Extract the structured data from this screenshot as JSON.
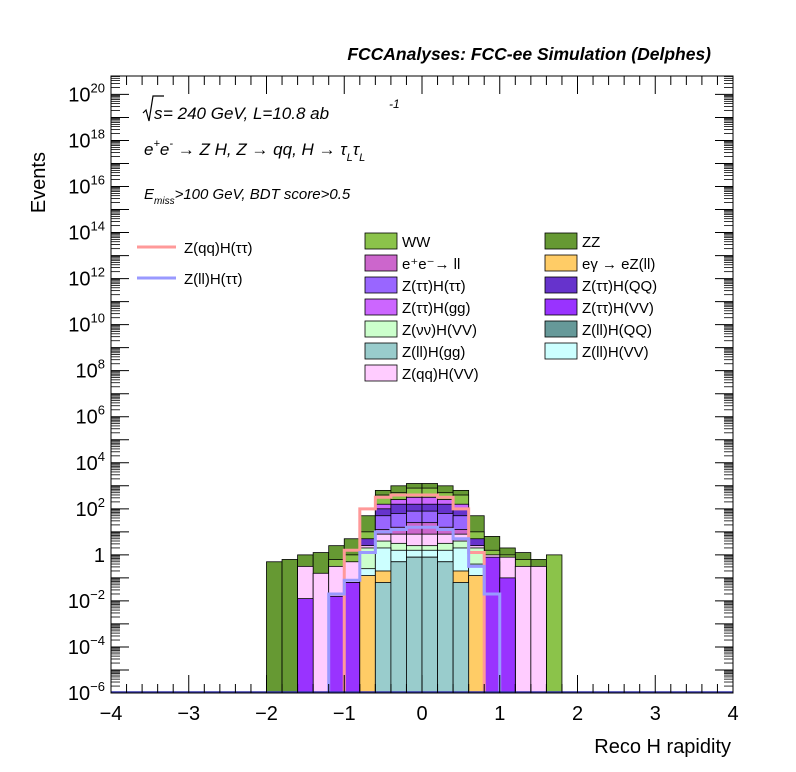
{
  "header": {
    "title": "FCCAnalyses: FCC-ee Simulation (Delphes)",
    "line1_pre": "s",
    "line1_main": " = 240 GeV, L=10.8 ab",
    "line1_exp": "-1",
    "line2_a": "e",
    "line2_a_sup": "+",
    "line2_b": "e",
    "line2_b_sup": "-",
    "line2_rest": " → Z H, Z  → qq, H  → τ",
    "line2_sub1": "L",
    "line2_tau2": "τ",
    "line2_sub2": "L",
    "cut_e": "E",
    "cut_sub": "miss",
    "cut_rest": ">100 GeV, BDT score>0.5"
  },
  "axes": {
    "xlabel": "Reco H rapidity",
    "ylabel": "Events",
    "xlim": [
      -4,
      4
    ],
    "ylim_log10": [
      -6,
      20.8
    ],
    "xticks": [
      "−4",
      "−3",
      "−2",
      "−1",
      "0",
      "1",
      "2",
      "3",
      "4"
    ],
    "xtick_values": [
      -4,
      -3,
      -2,
      -1,
      0,
      1,
      2,
      3,
      4
    ],
    "yticks": [
      {
        "exp": -6,
        "base": "10",
        "sup": "−6"
      },
      {
        "exp": -4,
        "base": "10",
        "sup": "−4"
      },
      {
        "exp": -2,
        "base": "10",
        "sup": "−2"
      },
      {
        "exp": 0,
        "base": "1",
        "sup": ""
      },
      {
        "exp": 2,
        "base": "10",
        "sup": "2"
      },
      {
        "exp": 4,
        "base": "10",
        "sup": "4"
      },
      {
        "exp": 6,
        "base": "10",
        "sup": "6"
      },
      {
        "exp": 8,
        "base": "10",
        "sup": "8"
      },
      {
        "exp": 10,
        "base": "10",
        "sup": "10"
      },
      {
        "exp": 12,
        "base": "10",
        "sup": "12"
      },
      {
        "exp": 14,
        "base": "10",
        "sup": "14"
      },
      {
        "exp": 16,
        "base": "10",
        "sup": "16"
      },
      {
        "exp": 18,
        "base": "10",
        "sup": "18"
      },
      {
        "exp": 20,
        "base": "10",
        "sup": "20"
      }
    ],
    "scale": "log"
  },
  "legend_signals": [
    {
      "label": "Z(qq)H(ττ)",
      "color": "#ff9999"
    },
    {
      "label": "Z(ll)H(ττ)",
      "color": "#9999ff"
    }
  ],
  "legend_backgrounds": [
    {
      "label": "WW",
      "color": "#8bc34a"
    },
    {
      "label": "ZZ",
      "color": "#669933"
    },
    {
      "label": "e⁺e⁻→ ll",
      "color": "#cc66cc"
    },
    {
      "label": "eγ  → eZ(ll)",
      "color": "#ffcc66"
    },
    {
      "label": "Z(ττ)H(ττ)",
      "color": "#9966ff"
    },
    {
      "label": "Z(ττ)H(QQ)",
      "color": "#6633cc"
    },
    {
      "label": "Z(ττ)H(gg)",
      "color": "#cc66ff"
    },
    {
      "label": "Z(ττ)H(VV)",
      "color": "#9933ff"
    },
    {
      "label": "Z(νν)H(VV)",
      "color": "#ccffcc"
    },
    {
      "label": "Z(ll)H(QQ)",
      "color": "#669999"
    },
    {
      "label": "Z(ll)H(gg)",
      "color": "#99cccc"
    },
    {
      "label": "Z(ll)H(VV)",
      "color": "#ccffff"
    },
    {
      "label": "Z(qq)H(VV)",
      "color": "#ffccff"
    }
  ],
  "chart_data": {
    "type": "area",
    "bin_edges": [
      -2.0,
      -1.8,
      -1.6,
      -1.4,
      -1.2,
      -1.0,
      -0.8,
      -0.6,
      -0.4,
      -0.2,
      0.0,
      0.2,
      0.4,
      0.6,
      0.8,
      1.0,
      1.2,
      1.4,
      1.6,
      1.8,
      2.0
    ],
    "stack_log10_tops": [
      {
        "name": "Z(ll)H(gg)",
        "color": "#99cccc",
        "tops": [
          null,
          null,
          null,
          null,
          null,
          null,
          null,
          -1.2,
          -0.3,
          -0.1,
          -0.1,
          -0.3,
          -1.2,
          null,
          null,
          null,
          null,
          null,
          null,
          null
        ]
      },
      {
        "name": "eγ  → eZ(ll)",
        "color": "#ffcc66",
        "tops": [
          null,
          null,
          null,
          null,
          null,
          null,
          -0.9,
          -0.7,
          -0.3,
          -0.1,
          -0.1,
          -0.3,
          -0.7,
          -0.9,
          null,
          null,
          null,
          null,
          null,
          null
        ]
      },
      {
        "name": "Z(ll)H(VV)",
        "color": "#ccffff",
        "tops": [
          null,
          null,
          null,
          null,
          null,
          null,
          -0.6,
          0.3,
          0.2,
          0.2,
          0.2,
          0.2,
          0.3,
          -0.4,
          null,
          null,
          null,
          null,
          null,
          null
        ]
      },
      {
        "name": "Z(ττ)H(VV)",
        "color": "#9933ff",
        "tops": [
          null,
          null,
          -1.9,
          null,
          -1.8,
          -1.2,
          null,
          null,
          null,
          null,
          null,
          null,
          null,
          null,
          -0.1,
          -1.0,
          null,
          null,
          null,
          null
        ]
      },
      {
        "name": "Z(νν)H(VV)",
        "color": "#ccffcc",
        "tops": [
          null,
          null,
          null,
          null,
          null,
          -1.2,
          0.3,
          0.6,
          0.5,
          0.4,
          0.4,
          0.5,
          0.6,
          0.3,
          -0.3,
          -1.1,
          null,
          null,
          null,
          null
        ]
      },
      {
        "name": "Z(qq)H(VV)",
        "color": "#ffccff",
        "tops": [
          null,
          null,
          -0.5,
          -0.8,
          -0.5,
          -0.3,
          0.4,
          0.9,
          0.9,
          0.9,
          0.9,
          0.9,
          0.9,
          0.4,
          0.0,
          -0.1,
          -0.5,
          -0.5,
          null,
          null
        ]
      },
      {
        "name": "e⁺e⁻→ ll",
        "color": "#cc66cc",
        "tops": [
          null,
          null,
          null,
          null,
          null,
          null,
          null,
          1.1,
          1.2,
          1.4,
          1.4,
          1.2,
          1.1,
          null,
          null,
          null,
          null,
          null,
          null,
          null
        ]
      },
      {
        "name": "Z(ττ)H(ττ)",
        "color": "#9966ff",
        "tops": [
          null,
          null,
          null,
          null,
          null,
          null,
          null,
          1.7,
          1.8,
          1.9,
          1.9,
          1.8,
          1.7,
          null,
          null,
          null,
          null,
          null,
          null,
          null
        ]
      },
      {
        "name": "Z(ττ)H(QQ)",
        "color": "#6633cc",
        "tops": [
          null,
          null,
          null,
          null,
          null,
          null,
          0.7,
          2.0,
          2.2,
          2.2,
          2.2,
          2.2,
          2.0,
          0.7,
          null,
          null,
          null,
          null,
          null,
          null
        ]
      },
      {
        "name": "Z(ττ)H(gg)",
        "color": "#cc66ff",
        "tops": [
          null,
          null,
          null,
          null,
          null,
          null,
          null,
          2.2,
          2.4,
          2.5,
          2.5,
          2.4,
          2.2,
          null,
          null,
          null,
          null,
          null,
          null,
          null
        ]
      },
      {
        "name": "WW",
        "color": "#8bc34a",
        "tops": [
          null,
          null,
          null,
          null,
          -0.2,
          0.0,
          1.0,
          2.6,
          2.7,
          2.9,
          2.9,
          2.7,
          2.6,
          1.0,
          0.2,
          0.0,
          -0.2,
          null,
          0.0,
          null
        ]
      },
      {
        "name": "ZZ",
        "color": "#669933",
        "tops": [
          -0.3,
          -0.2,
          0.0,
          0.1,
          0.4,
          0.7,
          1.7,
          2.8,
          3.0,
          3.1,
          3.1,
          3.0,
          2.8,
          1.7,
          0.8,
          0.3,
          0.1,
          -0.2,
          null,
          null
        ]
      }
    ],
    "signal_log10": [
      {
        "name": "Z(qq)H(ττ)",
        "color": "#ff9999",
        "values": [
          null,
          null,
          null,
          null,
          null,
          0.2,
          2.0,
          2.5,
          2.6,
          2.6,
          2.6,
          2.5,
          2.0,
          0.1,
          null,
          null,
          null,
          null,
          null,
          null
        ]
      },
      {
        "name": "Z(ll)H(ττ)",
        "color": "#9999ff",
        "values": [
          null,
          null,
          null,
          null,
          -1.7,
          -1.1,
          0.1,
          1.0,
          1.1,
          1.2,
          1.2,
          1.1,
          0.7,
          -0.5,
          -1.7,
          null,
          null,
          null,
          null,
          null
        ]
      }
    ]
  }
}
